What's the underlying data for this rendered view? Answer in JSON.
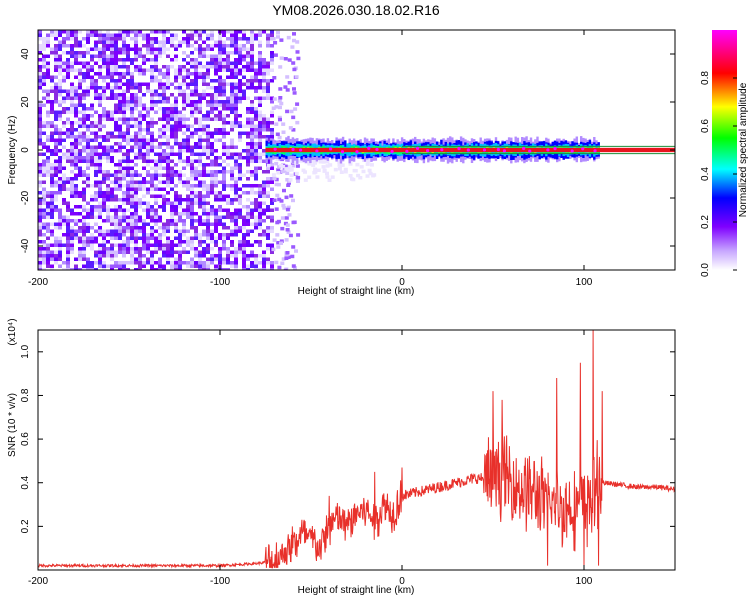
{
  "title": "YM08.2026.030.18.02.R16",
  "chart_data": [
    {
      "type": "heatmap",
      "xlabel": "Height of straight line (km)",
      "ylabel": "Frequency (Hz)",
      "xlim": [
        -200,
        150
      ],
      "ylim": [
        -50,
        50
      ],
      "x_ticks": [
        -200,
        -100,
        0,
        100
      ],
      "y_ticks": [
        -40,
        -20,
        0,
        20,
        40
      ],
      "colorbar": {
        "label": "Normalized spectral amplitude",
        "range": [
          0,
          1
        ],
        "ticks": [
          "0.0",
          "0.2",
          "0.4",
          "0.6",
          "0.8"
        ],
        "colors": [
          "#ffffff",
          "#7f00ff",
          "#0000ff",
          "#00ffff",
          "#00ff00",
          "#ffff00",
          "#ff0000",
          "#ff00ff"
        ]
      },
      "noise_region_x": [
        -200,
        -72
      ],
      "signal_band": {
        "x": [
          -75,
          108
        ],
        "center_freq": 0,
        "half_width": 3
      },
      "core_line": {
        "x": [
          -75,
          150
        ],
        "freq": 0
      },
      "band_edges_freq": [
        -1.5,
        1.5
      ]
    },
    {
      "type": "line",
      "xlabel": "Height of straight line (km)",
      "ylabel": "SNR (10 * v/v)",
      "y_multiplier": "(x10⁴)",
      "xlim": [
        -200,
        150
      ],
      "ylim": [
        0,
        1.1
      ],
      "x_ticks": [
        -200,
        -100,
        0,
        100
      ],
      "y_ticks": [
        "0.2",
        "0.4",
        "0.6",
        "0.8",
        "1.0"
      ],
      "series": [
        {
          "color": "#e8302a",
          "x": [
            -200,
            -150,
            -100,
            -80,
            -70,
            -65,
            -60,
            -55,
            -50,
            -45,
            -40,
            -35,
            -30,
            -25,
            -20,
            -15,
            -10,
            -5,
            0,
            10,
            20,
            30,
            40,
            50,
            55,
            60,
            65,
            70,
            75,
            80,
            85,
            90,
            95,
            100,
            105,
            108,
            110,
            120,
            130,
            140,
            150
          ],
          "y": [
            0.02,
            0.02,
            0.02,
            0.03,
            0.04,
            0.08,
            0.12,
            0.16,
            0.14,
            0.1,
            0.2,
            0.24,
            0.2,
            0.26,
            0.28,
            0.22,
            0.3,
            0.26,
            0.34,
            0.36,
            0.38,
            0.4,
            0.42,
            0.42,
            0.44,
            0.4,
            0.38,
            0.36,
            0.34,
            0.3,
            0.3,
            0.28,
            0.3,
            0.3,
            0.32,
            0.4,
            0.4,
            0.39,
            0.38,
            0.38,
            0.37
          ],
          "spikes": [
            {
              "x": -40,
              "y": 0.34
            },
            {
              "x": -15,
              "y": 0.45
            },
            {
              "x": 0,
              "y": 0.47
            },
            {
              "x": 50,
              "y": 0.82
            },
            {
              "x": 55,
              "y": 0.78
            },
            {
              "x": 85,
              "y": 0.88
            },
            {
              "x": 98,
              "y": 0.95
            },
            {
              "x": 105,
              "y": 1.1
            },
            {
              "x": 110,
              "y": 0.82
            }
          ],
          "dips": [
            {
              "x": 80,
              "y": 0.02
            },
            {
              "x": 100,
              "y": 0.02
            },
            {
              "x": 108,
              "y": 0.02
            }
          ]
        }
      ]
    }
  ]
}
